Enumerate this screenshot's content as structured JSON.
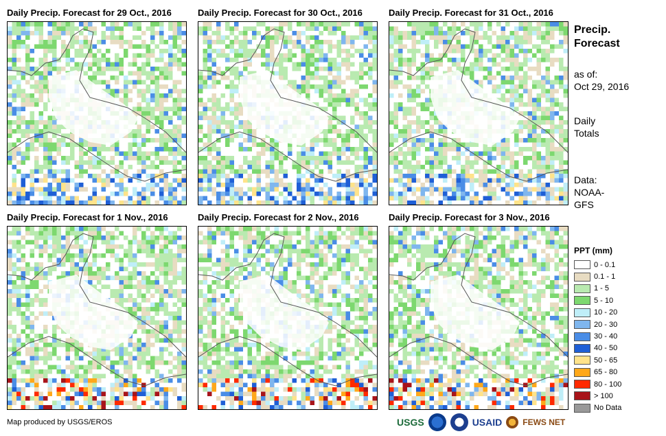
{
  "panels": [
    {
      "title": "Daily Precip. Forecast for 29 Oct., 2016"
    },
    {
      "title": "Daily Precip. Forecast for 30 Oct., 2016"
    },
    {
      "title": "Daily Precip. Forecast for 31 Oct., 2016"
    },
    {
      "title": "Daily Precip. Forecast for 1 Nov., 2016"
    },
    {
      "title": "Daily Precip. Forecast for 2 Nov., 2016"
    },
    {
      "title": "Daily Precip. Forecast for 3 Nov., 2016"
    }
  ],
  "sidebar": {
    "heading_line1": "Precip.",
    "heading_line2": "Forecast",
    "asof_label": "as of:",
    "asof_date": "Oct 29, 2016",
    "daily_line1": "Daily",
    "daily_line2": "Totals",
    "data_label": "Data:",
    "source_line1": "NOAA-",
    "source_line2": "GFS"
  },
  "legend": {
    "title": "PPT (mm)",
    "items": [
      {
        "label": "0 - 0.1",
        "color": "#ffffff"
      },
      {
        "label": "0.1 - 1",
        "color": "#e8dcc2"
      },
      {
        "label": "1 - 5",
        "color": "#b9eab0"
      },
      {
        "label": "5 - 10",
        "color": "#7dd86f"
      },
      {
        "label": "10 - 20",
        "color": "#bfeef8"
      },
      {
        "label": "20 - 30",
        "color": "#7fb6ee"
      },
      {
        "label": "30 - 40",
        "color": "#4a8de6"
      },
      {
        "label": "40 - 50",
        "color": "#1f5fd6"
      },
      {
        "label": "50 - 65",
        "color": "#ffe38a"
      },
      {
        "label": "65 - 80",
        "color": "#ffa81a"
      },
      {
        "label": "80 - 100",
        "color": "#ff2a00"
      },
      {
        "label": "> 100",
        "color": "#a8141a"
      },
      {
        "label": "No Data",
        "color": "#999999"
      }
    ]
  },
  "credit": "Map produced by USGS/EROS",
  "logos": {
    "usgs": "USGS",
    "usaid": "USAID",
    "fewsnet": "FEWS NET"
  }
}
